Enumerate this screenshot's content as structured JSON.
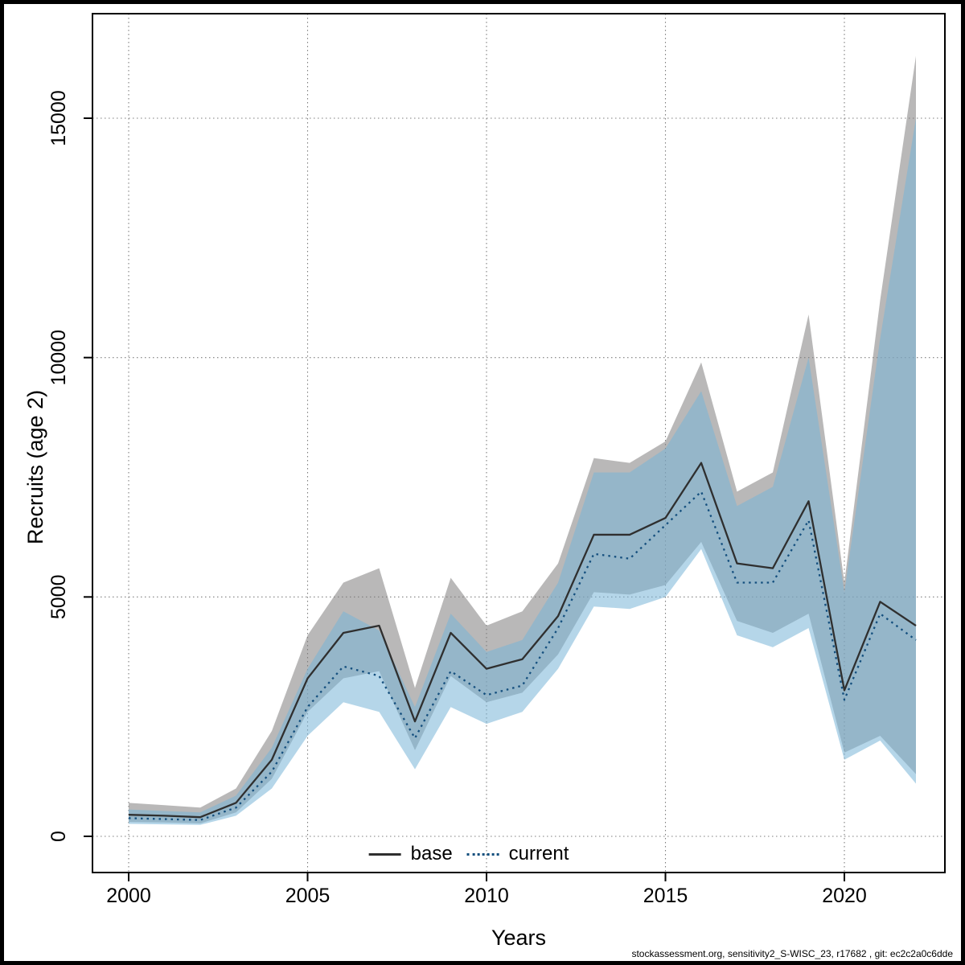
{
  "chart_data": {
    "type": "area",
    "title": "",
    "xlabel": "Years",
    "ylabel": "Recruits (age 2)",
    "footer": "stockassessment.org, sensitivity2_S-WISC_23, r17682 , git: ec2c2a0c6dde",
    "grid": true,
    "grid_style": "dotted",
    "legend_position": "bottom-center",
    "xlim": [
      2000,
      2022
    ],
    "ylim": [
      0,
      15000
    ],
    "xticks": [
      2000,
      2005,
      2010,
      2015,
      2020
    ],
    "yticks": [
      0,
      5000,
      10000,
      15000
    ],
    "x": [
      2000,
      2001,
      2002,
      2003,
      2004,
      2005,
      2006,
      2007,
      2008,
      2009,
      2010,
      2011,
      2012,
      2013,
      2014,
      2015,
      2016,
      2017,
      2018,
      2019,
      2020,
      2021,
      2022
    ],
    "series": [
      {
        "name": "base",
        "style": "solid",
        "color": "#2f2f2f",
        "band_color": "rgba(128,126,125,0.55)",
        "values": [
          450,
          430,
          400,
          700,
          1600,
          3300,
          4250,
          4400,
          2400,
          4250,
          3500,
          3700,
          4600,
          6300,
          6300,
          6650,
          7800,
          5700,
          5600,
          7000,
          3050,
          4900,
          4400
        ],
        "lower": [
          300,
          290,
          270,
          500,
          1200,
          2600,
          3300,
          3450,
          1800,
          3350,
          2800,
          3000,
          3800,
          5100,
          5050,
          5250,
          6150,
          4500,
          4250,
          4650,
          1750,
          2100,
          1300
        ],
        "upper": [
          700,
          650,
          600,
          1000,
          2200,
          4200,
          5300,
          5600,
          3100,
          5400,
          4400,
          4700,
          5700,
          7900,
          7800,
          8250,
          9900,
          7200,
          7600,
          10900,
          5300,
          11200,
          16300
        ]
      },
      {
        "name": "current",
        "style": "dotted",
        "color": "#144f7e",
        "band_color": "rgba(120,180,215,0.55)",
        "values": [
          380,
          360,
          340,
          600,
          1350,
          2700,
          3550,
          3350,
          2050,
          3450,
          2950,
          3150,
          4350,
          5900,
          5800,
          6500,
          7200,
          5300,
          5300,
          6600,
          2850,
          4650,
          4100
        ],
        "lower": [
          260,
          250,
          240,
          430,
          1000,
          2100,
          2800,
          2600,
          1400,
          2700,
          2350,
          2600,
          3500,
          4800,
          4750,
          5000,
          6000,
          4200,
          3950,
          4350,
          1600,
          2000,
          1100
        ],
        "upper": [
          560,
          530,
          500,
          850,
          1850,
          3500,
          4700,
          4300,
          2700,
          4650,
          3850,
          4100,
          5300,
          7600,
          7600,
          8100,
          9300,
          6900,
          7300,
          10000,
          5100,
          10400,
          15000
        ]
      }
    ]
  }
}
